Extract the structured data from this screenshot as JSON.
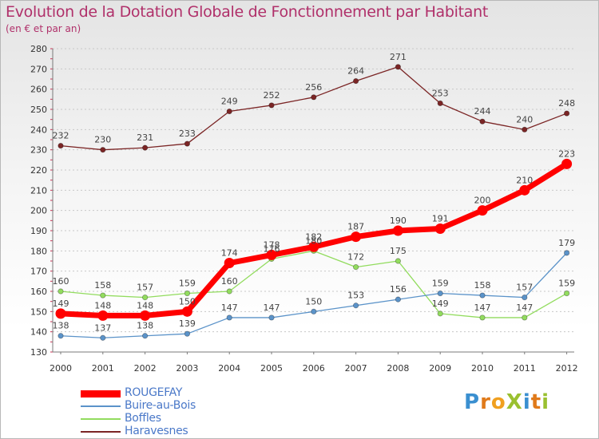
{
  "title": "Evolution de la Dotation Globale de Fonctionnement par Habitant",
  "subtitle": "(en € et par an)",
  "logo": {
    "text": "ProXiti",
    "colors": [
      "#3a8fd0",
      "#e07a1a",
      "#f0a020",
      "#9ac030",
      "#3a8fd0",
      "#e07a1a",
      "#9ac030"
    ]
  },
  "colors": {
    "rougefay": "#ff0000",
    "buire": "#5b93c9",
    "boffles": "#92dc5e",
    "haravesnes": "#7b2525"
  },
  "chart_data": {
    "type": "line",
    "title": "Evolution de la Dotation Globale de Fonctionnement par Habitant",
    "subtitle": "(en € et par an)",
    "xlabel": "",
    "ylabel": "",
    "x": [
      "2000",
      "2001",
      "2002",
      "2003",
      "2004",
      "2005",
      "2006",
      "2007",
      "2008",
      "2009",
      "2010",
      "2011",
      "2012"
    ],
    "ylim": [
      130,
      280
    ],
    "yticks": [
      130,
      140,
      150,
      160,
      170,
      180,
      190,
      200,
      210,
      220,
      230,
      240,
      250,
      260,
      270,
      280
    ],
    "grid": "horizontal dotted",
    "legend": "bottom-left",
    "series": [
      {
        "name": "ROUGEFAY",
        "color": "#ff0000",
        "values": [
          149,
          148,
          148,
          150,
          174,
          178,
          182,
          187,
          190,
          191,
          200,
          210,
          223
        ]
      },
      {
        "name": "Buire-au-Bois",
        "color": "#5b93c9",
        "values": [
          138,
          137,
          138,
          139,
          147,
          147,
          150,
          153,
          156,
          159,
          158,
          157,
          179
        ]
      },
      {
        "name": "Boffles",
        "color": "#92dc5e",
        "values": [
          160,
          158,
          157,
          159,
          160,
          176,
          180,
          172,
          175,
          149,
          147,
          147,
          159
        ]
      },
      {
        "name": "Haravesnes",
        "color": "#7b2525",
        "values": [
          232,
          230,
          231,
          233,
          249,
          252,
          256,
          264,
          271,
          253,
          244,
          240,
          248
        ]
      }
    ]
  }
}
